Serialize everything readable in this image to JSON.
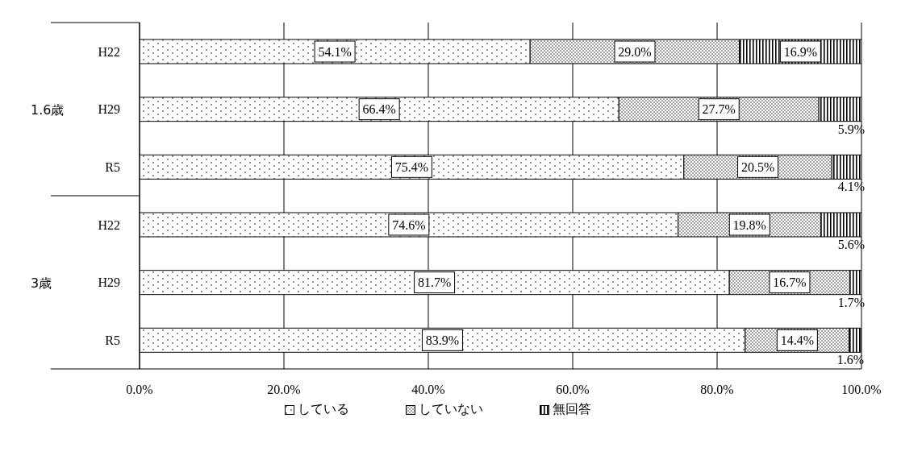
{
  "chart_data": {
    "type": "bar",
    "orientation": "horizontal",
    "stacked": true,
    "categories": [
      "H22",
      "H29",
      "R5",
      "H22",
      "H29",
      "R5"
    ],
    "series": [
      {
        "name": "している",
        "color": "#000000",
        "values": [
          54.1,
          66.4,
          75.4,
          74.6,
          81.7,
          83.9
        ],
        "value_labels": [
          "54.1%",
          "66.4%",
          "75.4%",
          "74.6%",
          "81.7%",
          "83.9%"
        ]
      },
      {
        "name": "していない",
        "color": "#000000",
        "values": [
          29.0,
          27.7,
          20.5,
          19.8,
          16.7,
          14.4
        ],
        "value_labels": [
          "29.0%",
          "27.7%",
          "20.5%",
          "19.8%",
          "16.7%",
          "14.4%"
        ]
      },
      {
        "name": "無回答",
        "color": "#000000",
        "values": [
          16.9,
          5.9,
          4.1,
          5.6,
          1.7,
          1.6
        ],
        "value_labels": [
          "16.9%",
          "5.9%",
          "4.1%",
          "5.6%",
          "1.7%",
          "1.6%"
        ]
      }
    ],
    "xlim": [
      0,
      100
    ],
    "xticks": [
      {
        "value": 0,
        "label": "0.0%"
      },
      {
        "value": 20,
        "label": "20.0%"
      },
      {
        "value": 40,
        "label": "40.0%"
      },
      {
        "value": 60,
        "label": "60.0%"
      },
      {
        "value": 80,
        "label": "80.0%"
      },
      {
        "value": 100,
        "label": "100.0%"
      }
    ],
    "annotations": [
      "1.6歳",
      "3歳"
    ],
    "grid": "x",
    "legend": "bottom"
  }
}
